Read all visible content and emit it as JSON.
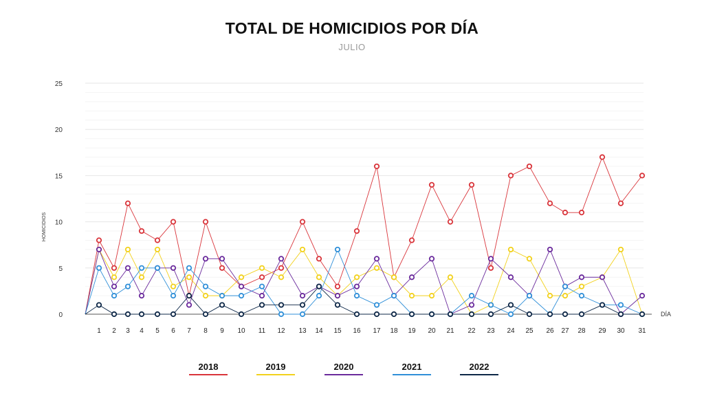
{
  "chart_data": {
    "type": "line",
    "title": "TOTAL DE HOMICIDIOS POR DÍA",
    "subtitle": "JULIO",
    "xlabel": "DÍA",
    "ylabel": "HOMICIDIOS",
    "x": [
      1,
      2,
      3,
      4,
      5,
      6,
      7,
      8,
      9,
      10,
      11,
      12,
      13,
      14,
      15,
      16,
      17,
      18,
      19,
      20,
      21,
      22,
      23,
      24,
      25,
      26,
      27,
      28,
      29,
      30,
      31
    ],
    "ylim": [
      0,
      25
    ],
    "yticks": [
      0,
      5,
      10,
      15,
      20,
      25
    ],
    "grid": true,
    "legend_position": "bottom",
    "series": [
      {
        "name": "2018",
        "color": "#d9343a",
        "values": [
          8,
          5,
          12,
          9,
          8,
          10,
          2,
          10,
          5,
          3,
          4,
          5,
          10,
          6,
          3,
          9,
          16,
          4,
          8,
          14,
          10,
          14,
          5,
          15,
          16,
          12,
          11,
          11,
          17,
          12,
          15
        ]
      },
      {
        "name": "2019",
        "color": "#f2d11c",
        "values": [
          7,
          4,
          7,
          4,
          7,
          3,
          4,
          2,
          2,
          4,
          5,
          4,
          7,
          4,
          2,
          4,
          5,
          4,
          2,
          2,
          4,
          0,
          1,
          7,
          6,
          2,
          2,
          3,
          4,
          7,
          0
        ]
      },
      {
        "name": "2020",
        "color": "#6a2a9c",
        "values": [
          7,
          3,
          5,
          2,
          5,
          5,
          1,
          6,
          6,
          3,
          2,
          6,
          2,
          3,
          2,
          3,
          6,
          2,
          4,
          6,
          0,
          1,
          6,
          4,
          2,
          7,
          3,
          4,
          4,
          0,
          2
        ]
      },
      {
        "name": "2021",
        "color": "#2f8fd8",
        "values": [
          5,
          2,
          3,
          5,
          5,
          2,
          5,
          3,
          2,
          2,
          3,
          0,
          0,
          2,
          7,
          2,
          1,
          2,
          0,
          0,
          0,
          2,
          1,
          0,
          2,
          0,
          3,
          2,
          1,
          1,
          0
        ]
      },
      {
        "name": "2022",
        "color": "#0d2747",
        "values": [
          1,
          0,
          0,
          0,
          0,
          0,
          2,
          0,
          1,
          0,
          1,
          1,
          1,
          3,
          1,
          0,
          0,
          0,
          0,
          0,
          0,
          0,
          0,
          1,
          0,
          0,
          0,
          0,
          1,
          0,
          0
        ]
      }
    ]
  }
}
